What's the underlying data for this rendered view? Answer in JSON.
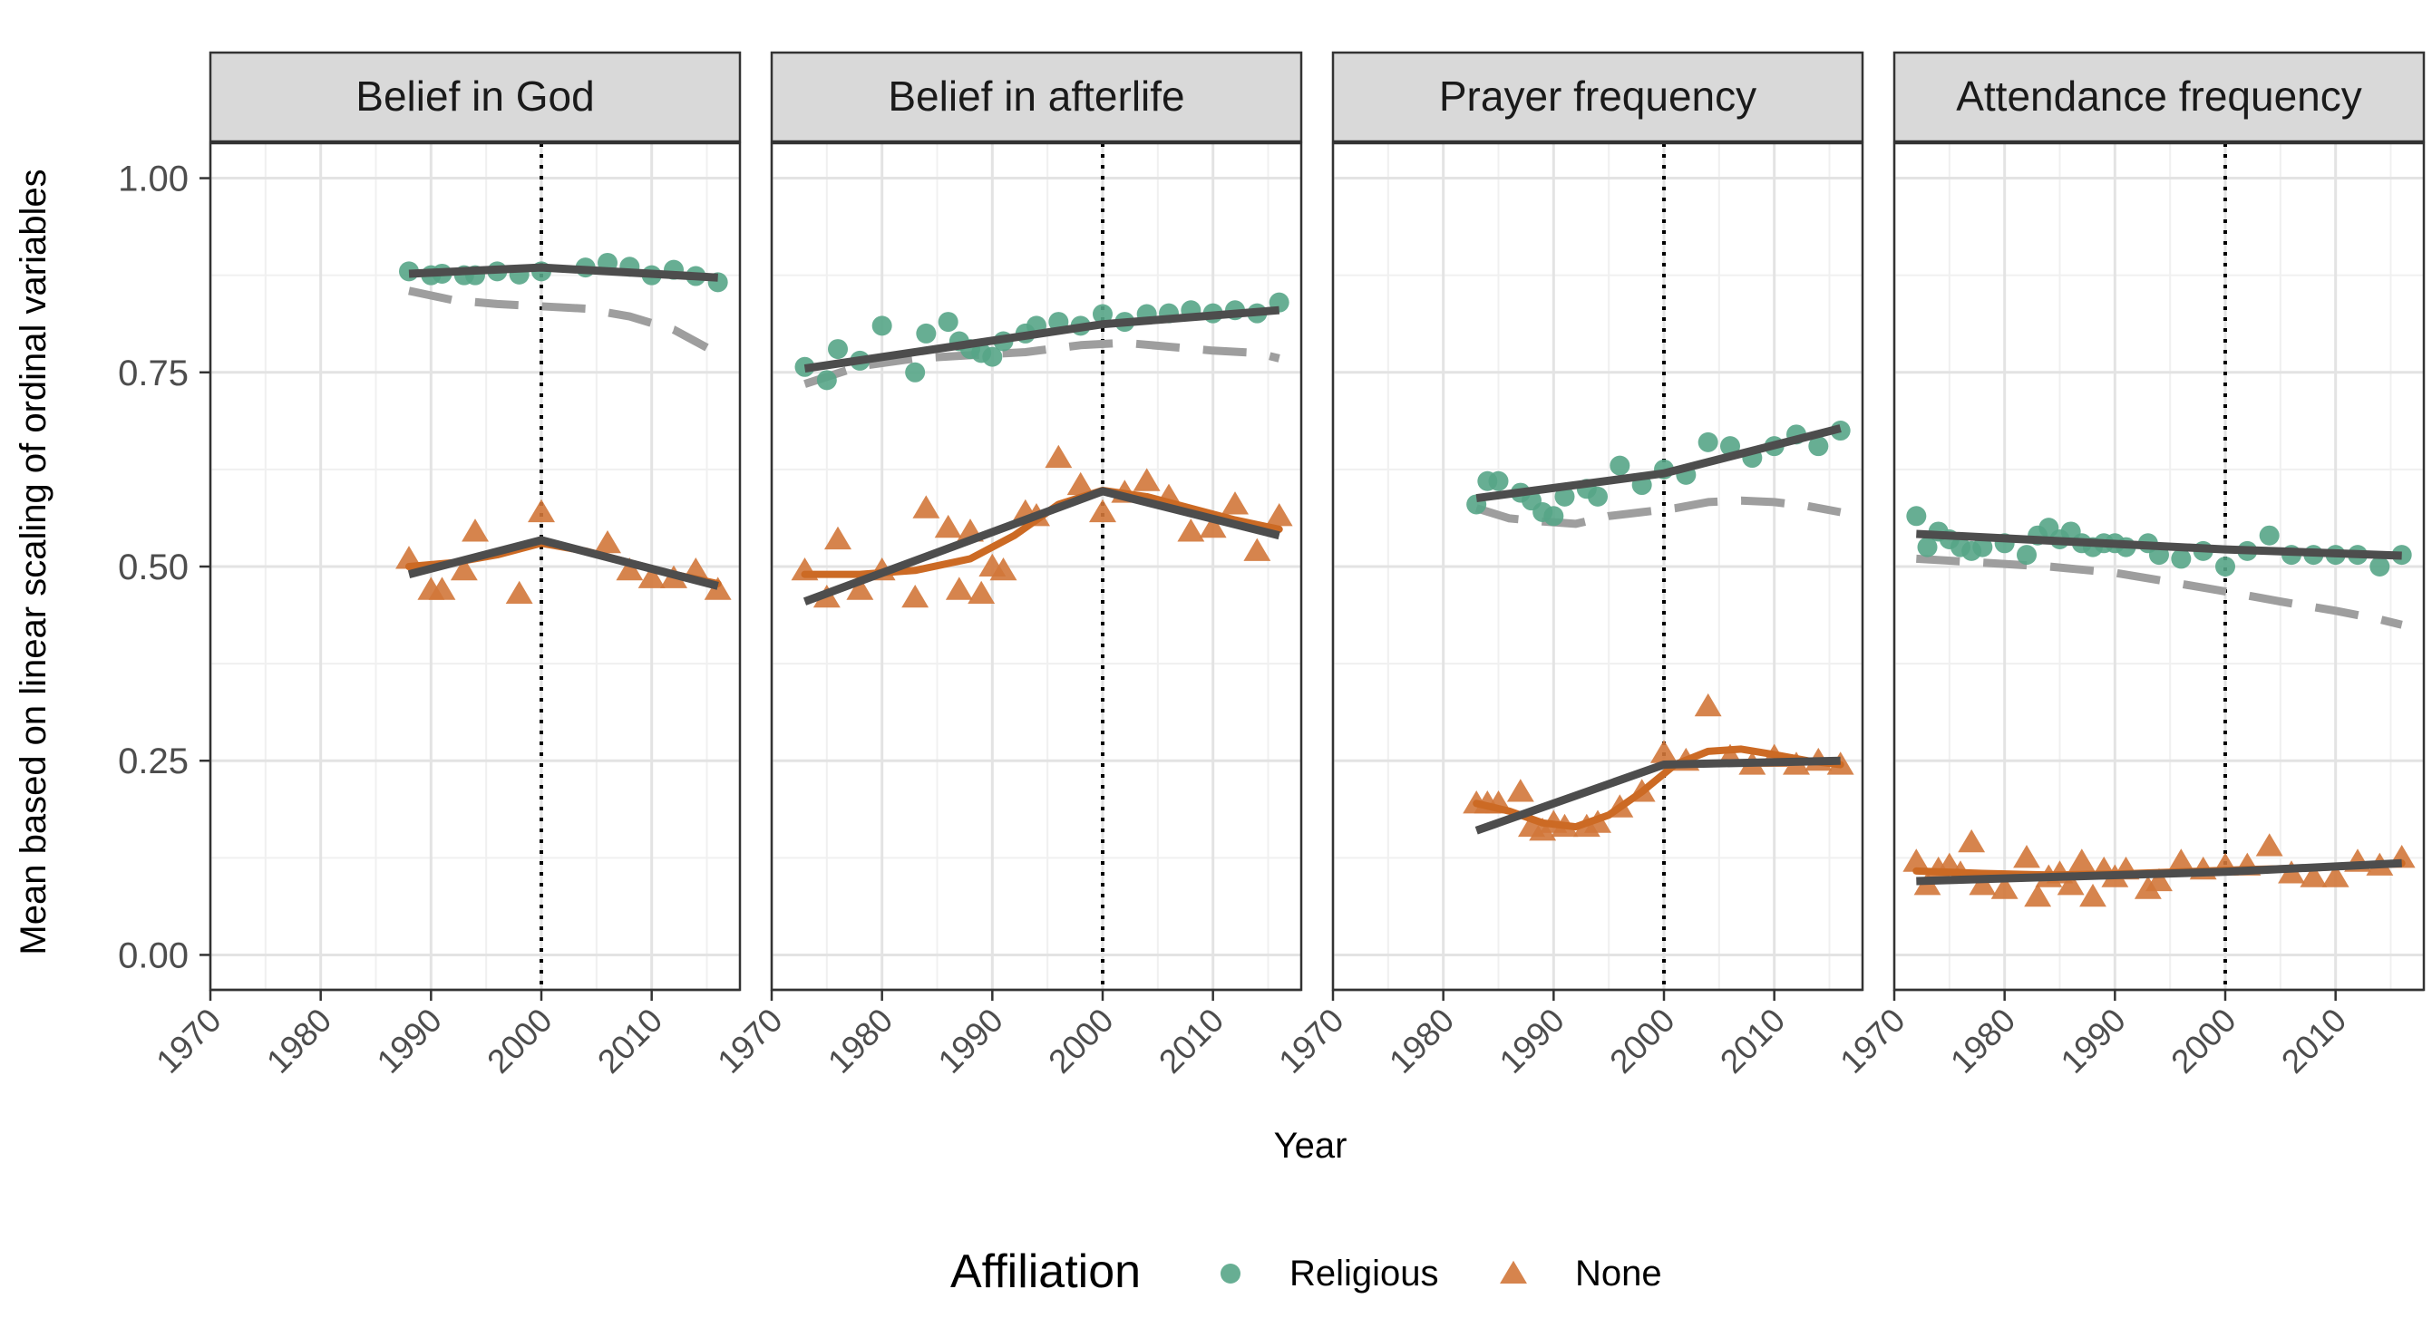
{
  "chart_data": {
    "type": "scatter",
    "xlabel": "Year",
    "ylabel": "Mean based on linear scaling of ordinal variables",
    "xlim": [
      1970,
      2018
    ],
    "ylim": [
      -0.045,
      1.045
    ],
    "x_ticks": [
      1970,
      1980,
      1990,
      2000,
      2010
    ],
    "y_ticks": [
      0.0,
      0.25,
      0.5,
      0.75,
      1.0
    ],
    "y_tick_labels": [
      "0.00",
      "0.25",
      "0.50",
      "0.75",
      "1.00"
    ],
    "vline_x": 2000,
    "grid": true,
    "legend": {
      "title": "Affiliation",
      "position": "bottom",
      "entries": [
        {
          "label": "Religious",
          "shape": "circle",
          "color": "#56A587"
        },
        {
          "label": "None",
          "shape": "triangle",
          "color": "#D2773A"
        }
      ]
    },
    "colors": {
      "religious": "#56A587",
      "none": "#D2773A",
      "none_smooth": "#CC6A24",
      "piecewise": "#4d4d4d",
      "dashed": "#9e9e9e"
    },
    "panels": [
      {
        "title": "Belief in God",
        "religious_points": [
          [
            1988,
            0.88
          ],
          [
            1990,
            0.875
          ],
          [
            1991,
            0.877
          ],
          [
            1993,
            0.875
          ],
          [
            1994,
            0.875
          ],
          [
            1996,
            0.88
          ],
          [
            1998,
            0.876
          ],
          [
            2000,
            0.88
          ],
          [
            2004,
            0.885
          ],
          [
            2006,
            0.891
          ],
          [
            2008,
            0.886
          ],
          [
            2010,
            0.875
          ],
          [
            2012,
            0.882
          ],
          [
            2014,
            0.874
          ],
          [
            2016,
            0.866
          ]
        ],
        "none_points": [
          [
            1988,
            0.51
          ],
          [
            1990,
            0.47
          ],
          [
            1991,
            0.47
          ],
          [
            1993,
            0.495
          ],
          [
            1994,
            0.545
          ],
          [
            1998,
            0.465
          ],
          [
            2000,
            0.57
          ],
          [
            2006,
            0.53
          ],
          [
            2008,
            0.495
          ],
          [
            2010,
            0.485
          ],
          [
            2012,
            0.485
          ],
          [
            2014,
            0.495
          ],
          [
            2016,
            0.47
          ]
        ],
        "religious_fit": [
          [
            1988,
            0.877
          ],
          [
            2000,
            0.885
          ],
          [
            2016,
            0.872
          ]
        ],
        "none_fit": [
          [
            1988,
            0.49
          ],
          [
            2000,
            0.534
          ],
          [
            2016,
            0.475
          ]
        ],
        "none_smooth": [
          [
            1988,
            0.5
          ],
          [
            1992,
            0.505
          ],
          [
            1996,
            0.515
          ],
          [
            2000,
            0.53
          ],
          [
            2004,
            0.52
          ],
          [
            2008,
            0.505
          ],
          [
            2012,
            0.49
          ],
          [
            2016,
            0.478
          ]
        ],
        "dashed": [
          [
            1988,
            0.855
          ],
          [
            1992,
            0.843
          ],
          [
            1996,
            0.838
          ],
          [
            2000,
            0.835
          ],
          [
            2004,
            0.832
          ],
          [
            2008,
            0.822
          ],
          [
            2012,
            0.805
          ],
          [
            2015,
            0.782
          ]
        ]
      },
      {
        "title": "Belief in afterlife",
        "religious_points": [
          [
            1973,
            0.757
          ],
          [
            1975,
            0.74
          ],
          [
            1976,
            0.78
          ],
          [
            1978,
            0.765
          ],
          [
            1980,
            0.81
          ],
          [
            1983,
            0.75
          ],
          [
            1984,
            0.8
          ],
          [
            1986,
            0.815
          ],
          [
            1987,
            0.79
          ],
          [
            1988,
            0.78
          ],
          [
            1989,
            0.775
          ],
          [
            1990,
            0.77
          ],
          [
            1991,
            0.79
          ],
          [
            1993,
            0.8
          ],
          [
            1994,
            0.81
          ],
          [
            1996,
            0.815
          ],
          [
            1998,
            0.81
          ],
          [
            2000,
            0.825
          ],
          [
            2002,
            0.815
          ],
          [
            2004,
            0.825
          ],
          [
            2006,
            0.826
          ],
          [
            2008,
            0.83
          ],
          [
            2010,
            0.826
          ],
          [
            2012,
            0.83
          ],
          [
            2014,
            0.826
          ],
          [
            2016,
            0.84
          ]
        ],
        "none_points": [
          [
            1973,
            0.495
          ],
          [
            1975,
            0.46
          ],
          [
            1976,
            0.535
          ],
          [
            1978,
            0.47
          ],
          [
            1980,
            0.495
          ],
          [
            1983,
            0.46
          ],
          [
            1984,
            0.575
          ],
          [
            1986,
            0.55
          ],
          [
            1987,
            0.47
          ],
          [
            1988,
            0.545
          ],
          [
            1989,
            0.465
          ],
          [
            1990,
            0.5
          ],
          [
            1991,
            0.495
          ],
          [
            1993,
            0.57
          ],
          [
            1994,
            0.565
          ],
          [
            1996,
            0.64
          ],
          [
            1998,
            0.605
          ],
          [
            2000,
            0.57
          ],
          [
            2002,
            0.595
          ],
          [
            2004,
            0.61
          ],
          [
            2006,
            0.59
          ],
          [
            2008,
            0.545
          ],
          [
            2010,
            0.55
          ],
          [
            2012,
            0.58
          ],
          [
            2014,
            0.52
          ],
          [
            2016,
            0.565
          ]
        ],
        "religious_fit": [
          [
            1973,
            0.755
          ],
          [
            2000,
            0.812
          ],
          [
            2016,
            0.83
          ]
        ],
        "none_fit": [
          [
            1973,
            0.455
          ],
          [
            2000,
            0.597
          ],
          [
            2016,
            0.54
          ]
        ],
        "none_smooth": [
          [
            1973,
            0.49
          ],
          [
            1978,
            0.49
          ],
          [
            1983,
            0.495
          ],
          [
            1988,
            0.51
          ],
          [
            1992,
            0.54
          ],
          [
            1996,
            0.58
          ],
          [
            2000,
            0.598
          ],
          [
            2004,
            0.59
          ],
          [
            2008,
            0.575
          ],
          [
            2012,
            0.56
          ],
          [
            2016,
            0.548
          ]
        ],
        "dashed": [
          [
            1973,
            0.735
          ],
          [
            1978,
            0.758
          ],
          [
            1983,
            0.768
          ],
          [
            1988,
            0.772
          ],
          [
            1993,
            0.776
          ],
          [
            1998,
            0.785
          ],
          [
            2002,
            0.788
          ],
          [
            2006,
            0.783
          ],
          [
            2010,
            0.778
          ],
          [
            2014,
            0.775
          ],
          [
            2016,
            0.768
          ]
        ]
      },
      {
        "title": "Prayer frequency",
        "religious_points": [
          [
            1983,
            0.58
          ],
          [
            1984,
            0.61
          ],
          [
            1985,
            0.61
          ],
          [
            1987,
            0.595
          ],
          [
            1988,
            0.585
          ],
          [
            1989,
            0.57
          ],
          [
            1990,
            0.565
          ],
          [
            1991,
            0.59
          ],
          [
            1993,
            0.6
          ],
          [
            1994,
            0.59
          ],
          [
            1996,
            0.63
          ],
          [
            1998,
            0.605
          ],
          [
            2000,
            0.625
          ],
          [
            2002,
            0.618
          ],
          [
            2004,
            0.66
          ],
          [
            2006,
            0.655
          ],
          [
            2008,
            0.64
          ],
          [
            2010,
            0.655
          ],
          [
            2012,
            0.67
          ],
          [
            2014,
            0.655
          ],
          [
            2016,
            0.675
          ]
        ],
        "none_points": [
          [
            1983,
            0.195
          ],
          [
            1984,
            0.195
          ],
          [
            1985,
            0.195
          ],
          [
            1987,
            0.21
          ],
          [
            1988,
            0.165
          ],
          [
            1989,
            0.16
          ],
          [
            1990,
            0.17
          ],
          [
            1991,
            0.165
          ],
          [
            1993,
            0.165
          ],
          [
            1994,
            0.17
          ],
          [
            1996,
            0.19
          ],
          [
            1998,
            0.21
          ],
          [
            2000,
            0.26
          ],
          [
            2002,
            0.25
          ],
          [
            2004,
            0.32
          ],
          [
            2006,
            0.255
          ],
          [
            2008,
            0.245
          ],
          [
            2010,
            0.255
          ],
          [
            2012,
            0.245
          ],
          [
            2014,
            0.25
          ],
          [
            2016,
            0.245
          ]
        ],
        "religious_fit": [
          [
            1983,
            0.588
          ],
          [
            2000,
            0.62
          ],
          [
            2016,
            0.678
          ]
        ],
        "none_fit": [
          [
            1983,
            0.16
          ],
          [
            2000,
            0.245
          ],
          [
            2016,
            0.25
          ]
        ],
        "none_smooth": [
          [
            1983,
            0.195
          ],
          [
            1986,
            0.185
          ],
          [
            1989,
            0.17
          ],
          [
            1992,
            0.165
          ],
          [
            1995,
            0.18
          ],
          [
            1998,
            0.21
          ],
          [
            2001,
            0.245
          ],
          [
            2004,
            0.262
          ],
          [
            2007,
            0.265
          ],
          [
            2010,
            0.258
          ],
          [
            2013,
            0.25
          ],
          [
            2016,
            0.245
          ]
        ],
        "dashed": [
          [
            1983,
            0.575
          ],
          [
            1986,
            0.562
          ],
          [
            1989,
            0.558
          ],
          [
            1992,
            0.555
          ],
          [
            1995,
            0.565
          ],
          [
            1998,
            0.57
          ],
          [
            2001,
            0.575
          ],
          [
            2004,
            0.583
          ],
          [
            2007,
            0.585
          ],
          [
            2010,
            0.583
          ],
          [
            2013,
            0.578
          ],
          [
            2016,
            0.57
          ]
        ]
      },
      {
        "title": "Attendance frequency",
        "religious_points": [
          [
            1972,
            0.565
          ],
          [
            1973,
            0.525
          ],
          [
            1974,
            0.545
          ],
          [
            1975,
            0.535
          ],
          [
            1976,
            0.525
          ],
          [
            1977,
            0.52
          ],
          [
            1978,
            0.525
          ],
          [
            1980,
            0.53
          ],
          [
            1982,
            0.515
          ],
          [
            1983,
            0.54
          ],
          [
            1984,
            0.55
          ],
          [
            1985,
            0.535
          ],
          [
            1986,
            0.545
          ],
          [
            1987,
            0.53
          ],
          [
            1988,
            0.525
          ],
          [
            1989,
            0.53
          ],
          [
            1990,
            0.53
          ],
          [
            1991,
            0.525
          ],
          [
            1993,
            0.53
          ],
          [
            1994,
            0.515
          ],
          [
            1996,
            0.51
          ],
          [
            1998,
            0.52
          ],
          [
            2000,
            0.5
          ],
          [
            2002,
            0.52
          ],
          [
            2004,
            0.54
          ],
          [
            2006,
            0.515
          ],
          [
            2008,
            0.515
          ],
          [
            2010,
            0.515
          ],
          [
            2012,
            0.515
          ],
          [
            2014,
            0.5
          ],
          [
            2016,
            0.515
          ]
        ],
        "none_points": [
          [
            1972,
            0.12
          ],
          [
            1973,
            0.09
          ],
          [
            1974,
            0.11
          ],
          [
            1975,
            0.115
          ],
          [
            1976,
            0.105
          ],
          [
            1977,
            0.145
          ],
          [
            1978,
            0.09
          ],
          [
            1980,
            0.085
          ],
          [
            1982,
            0.125
          ],
          [
            1983,
            0.075
          ],
          [
            1984,
            0.1
          ],
          [
            1985,
            0.105
          ],
          [
            1986,
            0.09
          ],
          [
            1987,
            0.12
          ],
          [
            1988,
            0.075
          ],
          [
            1989,
            0.11
          ],
          [
            1990,
            0.1
          ],
          [
            1991,
            0.11
          ],
          [
            1993,
            0.085
          ],
          [
            1994,
            0.095
          ],
          [
            1996,
            0.12
          ],
          [
            1998,
            0.11
          ],
          [
            2000,
            0.115
          ],
          [
            2002,
            0.115
          ],
          [
            2004,
            0.14
          ],
          [
            2006,
            0.105
          ],
          [
            2008,
            0.1
          ],
          [
            2010,
            0.1
          ],
          [
            2012,
            0.12
          ],
          [
            2014,
            0.115
          ],
          [
            2016,
            0.125
          ]
        ],
        "religious_fit": [
          [
            1972,
            0.542
          ],
          [
            2000,
            0.522
          ],
          [
            2016,
            0.514
          ]
        ],
        "none_fit": [
          [
            1972,
            0.095
          ],
          [
            2000,
            0.107
          ],
          [
            2016,
            0.118
          ]
        ],
        "none_smooth": [
          [
            1972,
            0.108
          ],
          [
            1978,
            0.105
          ],
          [
            1984,
            0.103
          ],
          [
            1990,
            0.104
          ],
          [
            1996,
            0.107
          ],
          [
            2002,
            0.11
          ],
          [
            2008,
            0.112
          ],
          [
            2012,
            0.115
          ],
          [
            2016,
            0.118
          ]
        ],
        "dashed": [
          [
            1972,
            0.51
          ],
          [
            1978,
            0.505
          ],
          [
            1984,
            0.5
          ],
          [
            1990,
            0.492
          ],
          [
            1995,
            0.48
          ],
          [
            2000,
            0.468
          ],
          [
            2005,
            0.455
          ],
          [
            2010,
            0.443
          ],
          [
            2014,
            0.432
          ],
          [
            2016,
            0.425
          ]
        ]
      }
    ]
  }
}
